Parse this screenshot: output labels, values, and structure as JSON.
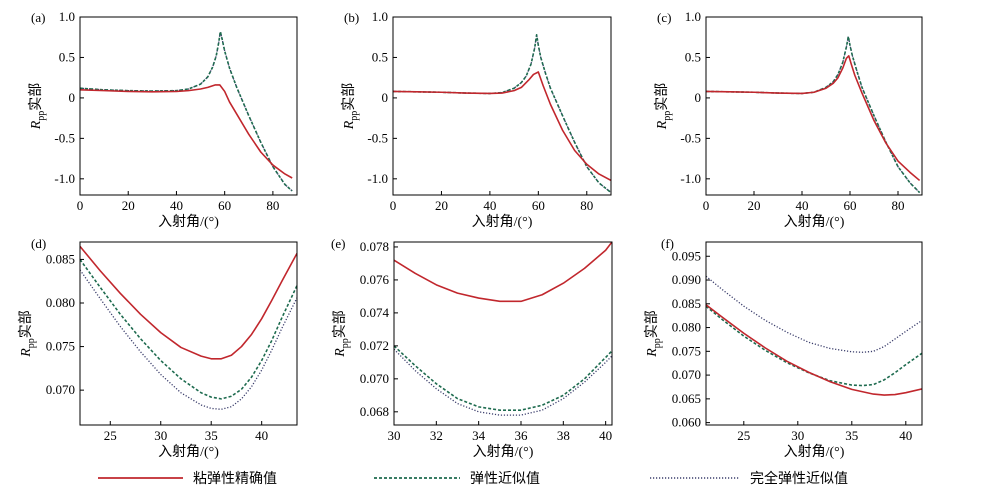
{
  "colors": {
    "viscoelastic": "#c1272d",
    "elastic": "#1e6b4f",
    "fully_elastic": "#3a3d6b",
    "elastic_dot": "#28a060"
  },
  "legend": [
    {
      "label": "粘弹性精确值",
      "style": "solid",
      "series": "viscoelastic"
    },
    {
      "label": "弹性近似值",
      "style": "dashed",
      "series": "elastic"
    },
    {
      "label": "完全弹性近似值",
      "style": "dotted",
      "series": "fully_elastic"
    }
  ],
  "chart_data": [
    {
      "panel": "(a)",
      "type": "line",
      "xlabel": "入射角/(°)",
      "ylabel": "Rpp实部",
      "xlim": [
        0,
        90
      ],
      "ylim": [
        -1.2,
        1.0
      ],
      "xticks": [
        0,
        20,
        40,
        60,
        80
      ],
      "yticks": [
        1.0,
        0.5,
        0,
        -0.5,
        -1.0
      ],
      "ytick_labels": [
        "1.0",
        "0.5",
        "0",
        "-0.5",
        "-1.0"
      ],
      "series": [
        {
          "key": "viscoelastic",
          "x": [
            0,
            10,
            20,
            30,
            40,
            45,
            50,
            53,
            56,
            58,
            60,
            62,
            65,
            70,
            75,
            80,
            85,
            88
          ],
          "y": [
            0.1,
            0.09,
            0.08,
            0.075,
            0.08,
            0.09,
            0.11,
            0.13,
            0.16,
            0.16,
            0.08,
            -0.05,
            -0.2,
            -0.45,
            -0.67,
            -0.83,
            -0.94,
            -0.99
          ]
        },
        {
          "key": "elastic",
          "x": [
            0,
            10,
            20,
            30,
            40,
            45,
            50,
            53,
            55,
            56.5,
            57.5,
            58.2,
            59,
            60,
            62,
            65,
            70,
            75,
            80,
            85,
            88
          ],
          "y": [
            0.12,
            0.1,
            0.09,
            0.085,
            0.09,
            0.11,
            0.17,
            0.26,
            0.38,
            0.52,
            0.68,
            0.82,
            0.72,
            0.58,
            0.37,
            0.13,
            -0.22,
            -0.55,
            -0.85,
            -1.07,
            -1.15
          ]
        },
        {
          "key": "fully_elastic",
          "x": [
            0,
            10,
            20,
            30,
            40,
            45,
            50,
            53,
            55,
            56.5,
            57.5,
            58.2,
            59,
            60,
            62,
            65,
            70,
            75,
            80,
            85,
            88
          ],
          "y": [
            0.12,
            0.1,
            0.09,
            0.085,
            0.09,
            0.11,
            0.17,
            0.26,
            0.38,
            0.52,
            0.68,
            0.82,
            0.72,
            0.58,
            0.37,
            0.13,
            -0.22,
            -0.55,
            -0.85,
            -1.07,
            -1.15
          ]
        }
      ]
    },
    {
      "panel": "(b)",
      "type": "line",
      "xlabel": "入射角/(°)",
      "ylabel": "Rpp实部",
      "xlim": [
        0,
        90
      ],
      "ylim": [
        -1.2,
        1.0
      ],
      "xticks": [
        0,
        20,
        40,
        60,
        80
      ],
      "yticks": [
        1.0,
        0.5,
        0,
        -0.5,
        -1.0
      ],
      "ytick_labels": [
        "1.0",
        "0.5",
        "0",
        "-0.5",
        "-1.0"
      ],
      "series": [
        {
          "key": "viscoelastic",
          "x": [
            0,
            10,
            20,
            30,
            40,
            45,
            50,
            53,
            56,
            58,
            60,
            62,
            65,
            70,
            75,
            80,
            85,
            90
          ],
          "y": [
            0.08,
            0.075,
            0.07,
            0.06,
            0.055,
            0.06,
            0.09,
            0.13,
            0.22,
            0.29,
            0.32,
            0.15,
            -0.08,
            -0.4,
            -0.65,
            -0.82,
            -0.94,
            -1.02
          ]
        },
        {
          "key": "elastic",
          "x": [
            0,
            10,
            20,
            30,
            40,
            45,
            50,
            53,
            55,
            57,
            58.5,
            59.3,
            60,
            61,
            63,
            65,
            70,
            75,
            80,
            85,
            90
          ],
          "y": [
            0.08,
            0.075,
            0.07,
            0.06,
            0.055,
            0.065,
            0.12,
            0.19,
            0.27,
            0.42,
            0.62,
            0.78,
            0.65,
            0.5,
            0.3,
            0.12,
            -0.22,
            -0.55,
            -0.85,
            -1.05,
            -1.17
          ]
        },
        {
          "key": "fully_elastic",
          "x": [
            0,
            10,
            20,
            30,
            40,
            45,
            50,
            53,
            55,
            57,
            58.5,
            59.3,
            60,
            61,
            63,
            65,
            70,
            75,
            80,
            85,
            90
          ],
          "y": [
            0.08,
            0.075,
            0.07,
            0.06,
            0.055,
            0.065,
            0.12,
            0.19,
            0.27,
            0.42,
            0.62,
            0.78,
            0.65,
            0.5,
            0.3,
            0.12,
            -0.22,
            -0.55,
            -0.85,
            -1.05,
            -1.17
          ]
        }
      ]
    },
    {
      "panel": "(c)",
      "type": "line",
      "xlabel": "入射角/(°)",
      "ylabel": "Rpp实部",
      "xlim": [
        0,
        90
      ],
      "ylim": [
        -1.2,
        1.0
      ],
      "xticks": [
        0,
        20,
        40,
        60,
        80
      ],
      "yticks": [
        1.0,
        0.5,
        0,
        -0.5,
        -1.0
      ],
      "ytick_labels": [
        "1.0",
        "0.5",
        "0",
        "-0.5",
        "-1.0"
      ],
      "series": [
        {
          "key": "viscoelastic",
          "x": [
            0,
            10,
            20,
            30,
            40,
            45,
            50,
            53,
            55,
            57,
            58.5,
            59.5,
            60.5,
            62,
            65,
            70,
            75,
            80,
            85,
            89
          ],
          "y": [
            0.08,
            0.075,
            0.07,
            0.06,
            0.055,
            0.07,
            0.12,
            0.18,
            0.25,
            0.37,
            0.49,
            0.52,
            0.42,
            0.28,
            0.06,
            -0.28,
            -0.56,
            -0.78,
            -0.92,
            -1.02
          ]
        },
        {
          "key": "elastic",
          "x": [
            0,
            10,
            20,
            30,
            40,
            45,
            50,
            53,
            55,
            57,
            58.5,
            59.3,
            60,
            61,
            63,
            65,
            70,
            75,
            80,
            85,
            89
          ],
          "y": [
            0.08,
            0.075,
            0.07,
            0.06,
            0.055,
            0.07,
            0.13,
            0.2,
            0.29,
            0.44,
            0.63,
            0.76,
            0.65,
            0.52,
            0.32,
            0.13,
            -0.22,
            -0.55,
            -0.85,
            -1.05,
            -1.17
          ]
        },
        {
          "key": "fully_elastic",
          "x": [
            0,
            10,
            20,
            30,
            40,
            45,
            50,
            53,
            55,
            57,
            58.5,
            59.3,
            60,
            61,
            63,
            65,
            70,
            75,
            80,
            85,
            89
          ],
          "y": [
            0.08,
            0.075,
            0.07,
            0.06,
            0.055,
            0.07,
            0.13,
            0.2,
            0.29,
            0.44,
            0.63,
            0.76,
            0.65,
            0.52,
            0.32,
            0.13,
            -0.22,
            -0.55,
            -0.85,
            -1.05,
            -1.17
          ]
        }
      ]
    },
    {
      "panel": "(d)",
      "type": "line",
      "xlabel": "入射角/(°)",
      "ylabel": "Rpp实部",
      "xlim": [
        22,
        43.5
      ],
      "ylim": [
        0.066,
        0.087
      ],
      "xticks": [
        25,
        30,
        35,
        40
      ],
      "yticks": [
        0.085,
        0.08,
        0.075,
        0.07
      ],
      "ytick_labels": [
        "0.085",
        "0.080",
        "0.075",
        "0.070"
      ],
      "series": [
        {
          "key": "viscoelastic",
          "x": [
            22,
            24,
            26,
            28,
            30,
            32,
            34,
            35,
            36,
            37,
            38,
            39,
            40,
            41,
            42,
            43.5
          ],
          "y": [
            0.0865,
            0.0837,
            0.0811,
            0.0787,
            0.0766,
            0.0749,
            0.0739,
            0.0736,
            0.0736,
            0.074,
            0.075,
            0.0764,
            0.0782,
            0.0803,
            0.0825,
            0.0857
          ]
        },
        {
          "key": "elastic",
          "x": [
            22,
            24,
            26,
            28,
            30,
            32,
            34,
            35,
            36,
            37,
            38,
            39,
            40,
            41,
            42,
            43.5
          ],
          "y": [
            0.085,
            0.0818,
            0.0787,
            0.0759,
            0.0734,
            0.0713,
            0.0697,
            0.0692,
            0.069,
            0.0693,
            0.0701,
            0.0715,
            0.0734,
            0.0757,
            0.0783,
            0.082
          ]
        },
        {
          "key": "fully_elastic",
          "x": [
            22,
            24,
            26,
            28,
            30,
            32,
            34,
            35,
            36,
            37,
            38,
            39,
            40,
            41,
            42,
            43.5
          ],
          "y": [
            0.0838,
            0.0805,
            0.0773,
            0.0744,
            0.0718,
            0.0697,
            0.0683,
            0.0679,
            0.0678,
            0.0681,
            0.069,
            0.0704,
            0.0723,
            0.0746,
            0.0771,
            0.0806
          ]
        }
      ]
    },
    {
      "panel": "(e)",
      "type": "line",
      "xlabel": "入射角/(°)",
      "ylabel": "Rpp实部",
      "xlim": [
        30,
        40.3
      ],
      "ylim": [
        0.0672,
        0.0783
      ],
      "xticks": [
        30,
        32,
        34,
        36,
        38,
        40
      ],
      "yticks": [
        0.078,
        0.076,
        0.074,
        0.072,
        0.07,
        0.068
      ],
      "ytick_labels": [
        "0.078",
        "0.076",
        "0.074",
        "0.072",
        "0.070",
        "0.068"
      ],
      "series": [
        {
          "key": "viscoelastic",
          "x": [
            30,
            31,
            32,
            33,
            34,
            35,
            36,
            37,
            38,
            39,
            40,
            40.3
          ],
          "y": [
            0.0772,
            0.0764,
            0.0757,
            0.0752,
            0.0749,
            0.0747,
            0.0747,
            0.0751,
            0.0758,
            0.0767,
            0.0778,
            0.0783
          ]
        },
        {
          "key": "elastic",
          "x": [
            30,
            31,
            32,
            33,
            34,
            35,
            36,
            37,
            38,
            39,
            40,
            40.3
          ],
          "y": [
            0.072,
            0.0708,
            0.0697,
            0.0688,
            0.0683,
            0.0681,
            0.0681,
            0.0684,
            0.069,
            0.07,
            0.0713,
            0.0717
          ]
        },
        {
          "key": "fully_elastic",
          "x": [
            30,
            31,
            32,
            33,
            34,
            35,
            36,
            37,
            38,
            39,
            40,
            40.3
          ],
          "y": [
            0.0718,
            0.0705,
            0.0694,
            0.0685,
            0.068,
            0.0678,
            0.0678,
            0.0681,
            0.0688,
            0.0698,
            0.071,
            0.0714
          ]
        }
      ]
    },
    {
      "panel": "(f)",
      "type": "line",
      "xlabel": "入射角/(°)",
      "ylabel": "Rpp实部",
      "xlim": [
        21.5,
        41.5
      ],
      "ylim": [
        0.0595,
        0.098
      ],
      "xticks": [
        25,
        30,
        35,
        40
      ],
      "yticks": [
        0.095,
        0.09,
        0.085,
        0.08,
        0.075,
        0.07,
        0.065,
        0.06
      ],
      "ytick_labels": [
        "0.095",
        "0.090",
        "0.085",
        "0.080",
        "0.075",
        "0.070",
        "0.065",
        "0.060"
      ],
      "series": [
        {
          "key": "viscoelastic",
          "x": [
            21.5,
            23,
            25,
            27,
            29,
            31,
            33,
            35,
            37,
            38,
            39,
            40,
            41.5
          ],
          "y": [
            0.0848,
            0.0822,
            0.0788,
            0.0757,
            0.0729,
            0.0706,
            0.0686,
            0.067,
            0.066,
            0.0658,
            0.0659,
            0.0663,
            0.0671
          ]
        },
        {
          "key": "elastic",
          "x": [
            21.5,
            23,
            25,
            27,
            29,
            31,
            33,
            35,
            36,
            37,
            38,
            39,
            40,
            41.5
          ],
          "y": [
            0.0845,
            0.0817,
            0.0782,
            0.0752,
            0.0726,
            0.0705,
            0.0688,
            0.0679,
            0.0678,
            0.068,
            0.069,
            0.0705,
            0.0722,
            0.0746
          ]
        },
        {
          "key": "fully_elastic",
          "x": [
            21.5,
            23,
            25,
            27,
            29,
            31,
            33,
            35,
            36,
            37,
            38,
            39,
            40,
            41.5
          ],
          "y": [
            0.0908,
            0.088,
            0.0845,
            0.0815,
            0.079,
            0.0769,
            0.0756,
            0.0749,
            0.0748,
            0.075,
            0.076,
            0.0776,
            0.0792,
            0.0815
          ]
        }
      ]
    }
  ]
}
